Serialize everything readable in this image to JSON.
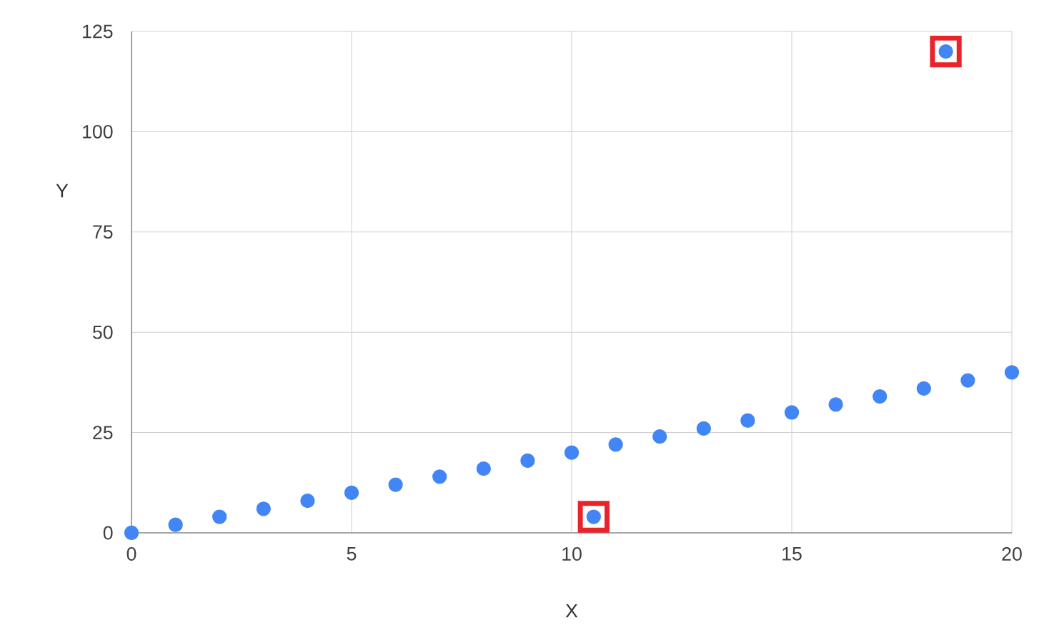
{
  "chart_data": {
    "type": "scatter",
    "xlabel": "X",
    "ylabel": "Y",
    "x": [
      0,
      1,
      2,
      3,
      4,
      5,
      6,
      7,
      8,
      9,
      10,
      10.5,
      11,
      12,
      13,
      14,
      15,
      16,
      17,
      18,
      18.5,
      19,
      20
    ],
    "series": [
      {
        "color": "#4285f4",
        "marker": "circle",
        "values": [
          0,
          2,
          4,
          6,
          8,
          10,
          12,
          14,
          16,
          18,
          20,
          4,
          22,
          24,
          26,
          28,
          30,
          32,
          34,
          36,
          120,
          38,
          40
        ]
      },
      {
        "color": "#e8232a",
        "marker": "square",
        "x": [
          10.5,
          18.5
        ],
        "values": [
          4,
          120
        ]
      }
    ],
    "xlim": [
      0,
      20
    ],
    "ylim": [
      0,
      125
    ],
    "xticks": [
      0,
      5,
      10,
      15,
      20
    ],
    "yticks": [
      0,
      25,
      50,
      75,
      100,
      125
    ],
    "grid": true
  }
}
